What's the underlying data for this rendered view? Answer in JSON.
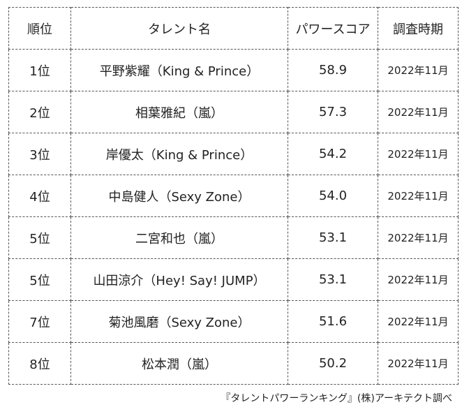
{
  "table": {
    "headers": {
      "rank": "順位",
      "name": "タレント名",
      "score": "パワースコア",
      "date": "調査時期"
    },
    "rows": [
      {
        "rank": "1位",
        "name": "平野紫耀（King & Prince）",
        "score": "58.9",
        "date": "2022年11月"
      },
      {
        "rank": "2位",
        "name": "相葉雅紀（嵐）",
        "score": "57.3",
        "date": "2022年11月"
      },
      {
        "rank": "3位",
        "name": "岸優太（King & Prince）",
        "score": "54.2",
        "date": "2022年11月"
      },
      {
        "rank": "4位",
        "name": "中島健人（Sexy Zone）",
        "score": "54.0",
        "date": "2022年11月"
      },
      {
        "rank": "5位",
        "name": "二宮和也（嵐）",
        "score": "53.1",
        "date": "2022年11月"
      },
      {
        "rank": "5位",
        "name": "山田涼介（Hey! Say! JUMP）",
        "score": "53.1",
        "date": "2022年11月"
      },
      {
        "rank": "7位",
        "name": "菊池風磨（Sexy Zone）",
        "score": "51.6",
        "date": "2022年11月"
      },
      {
        "rank": "8位",
        "name": "松本潤（嵐）",
        "score": "50.2",
        "date": "2022年11月"
      }
    ]
  },
  "source": "『タレントパワーランキング』(株)アーキテクト調べ"
}
